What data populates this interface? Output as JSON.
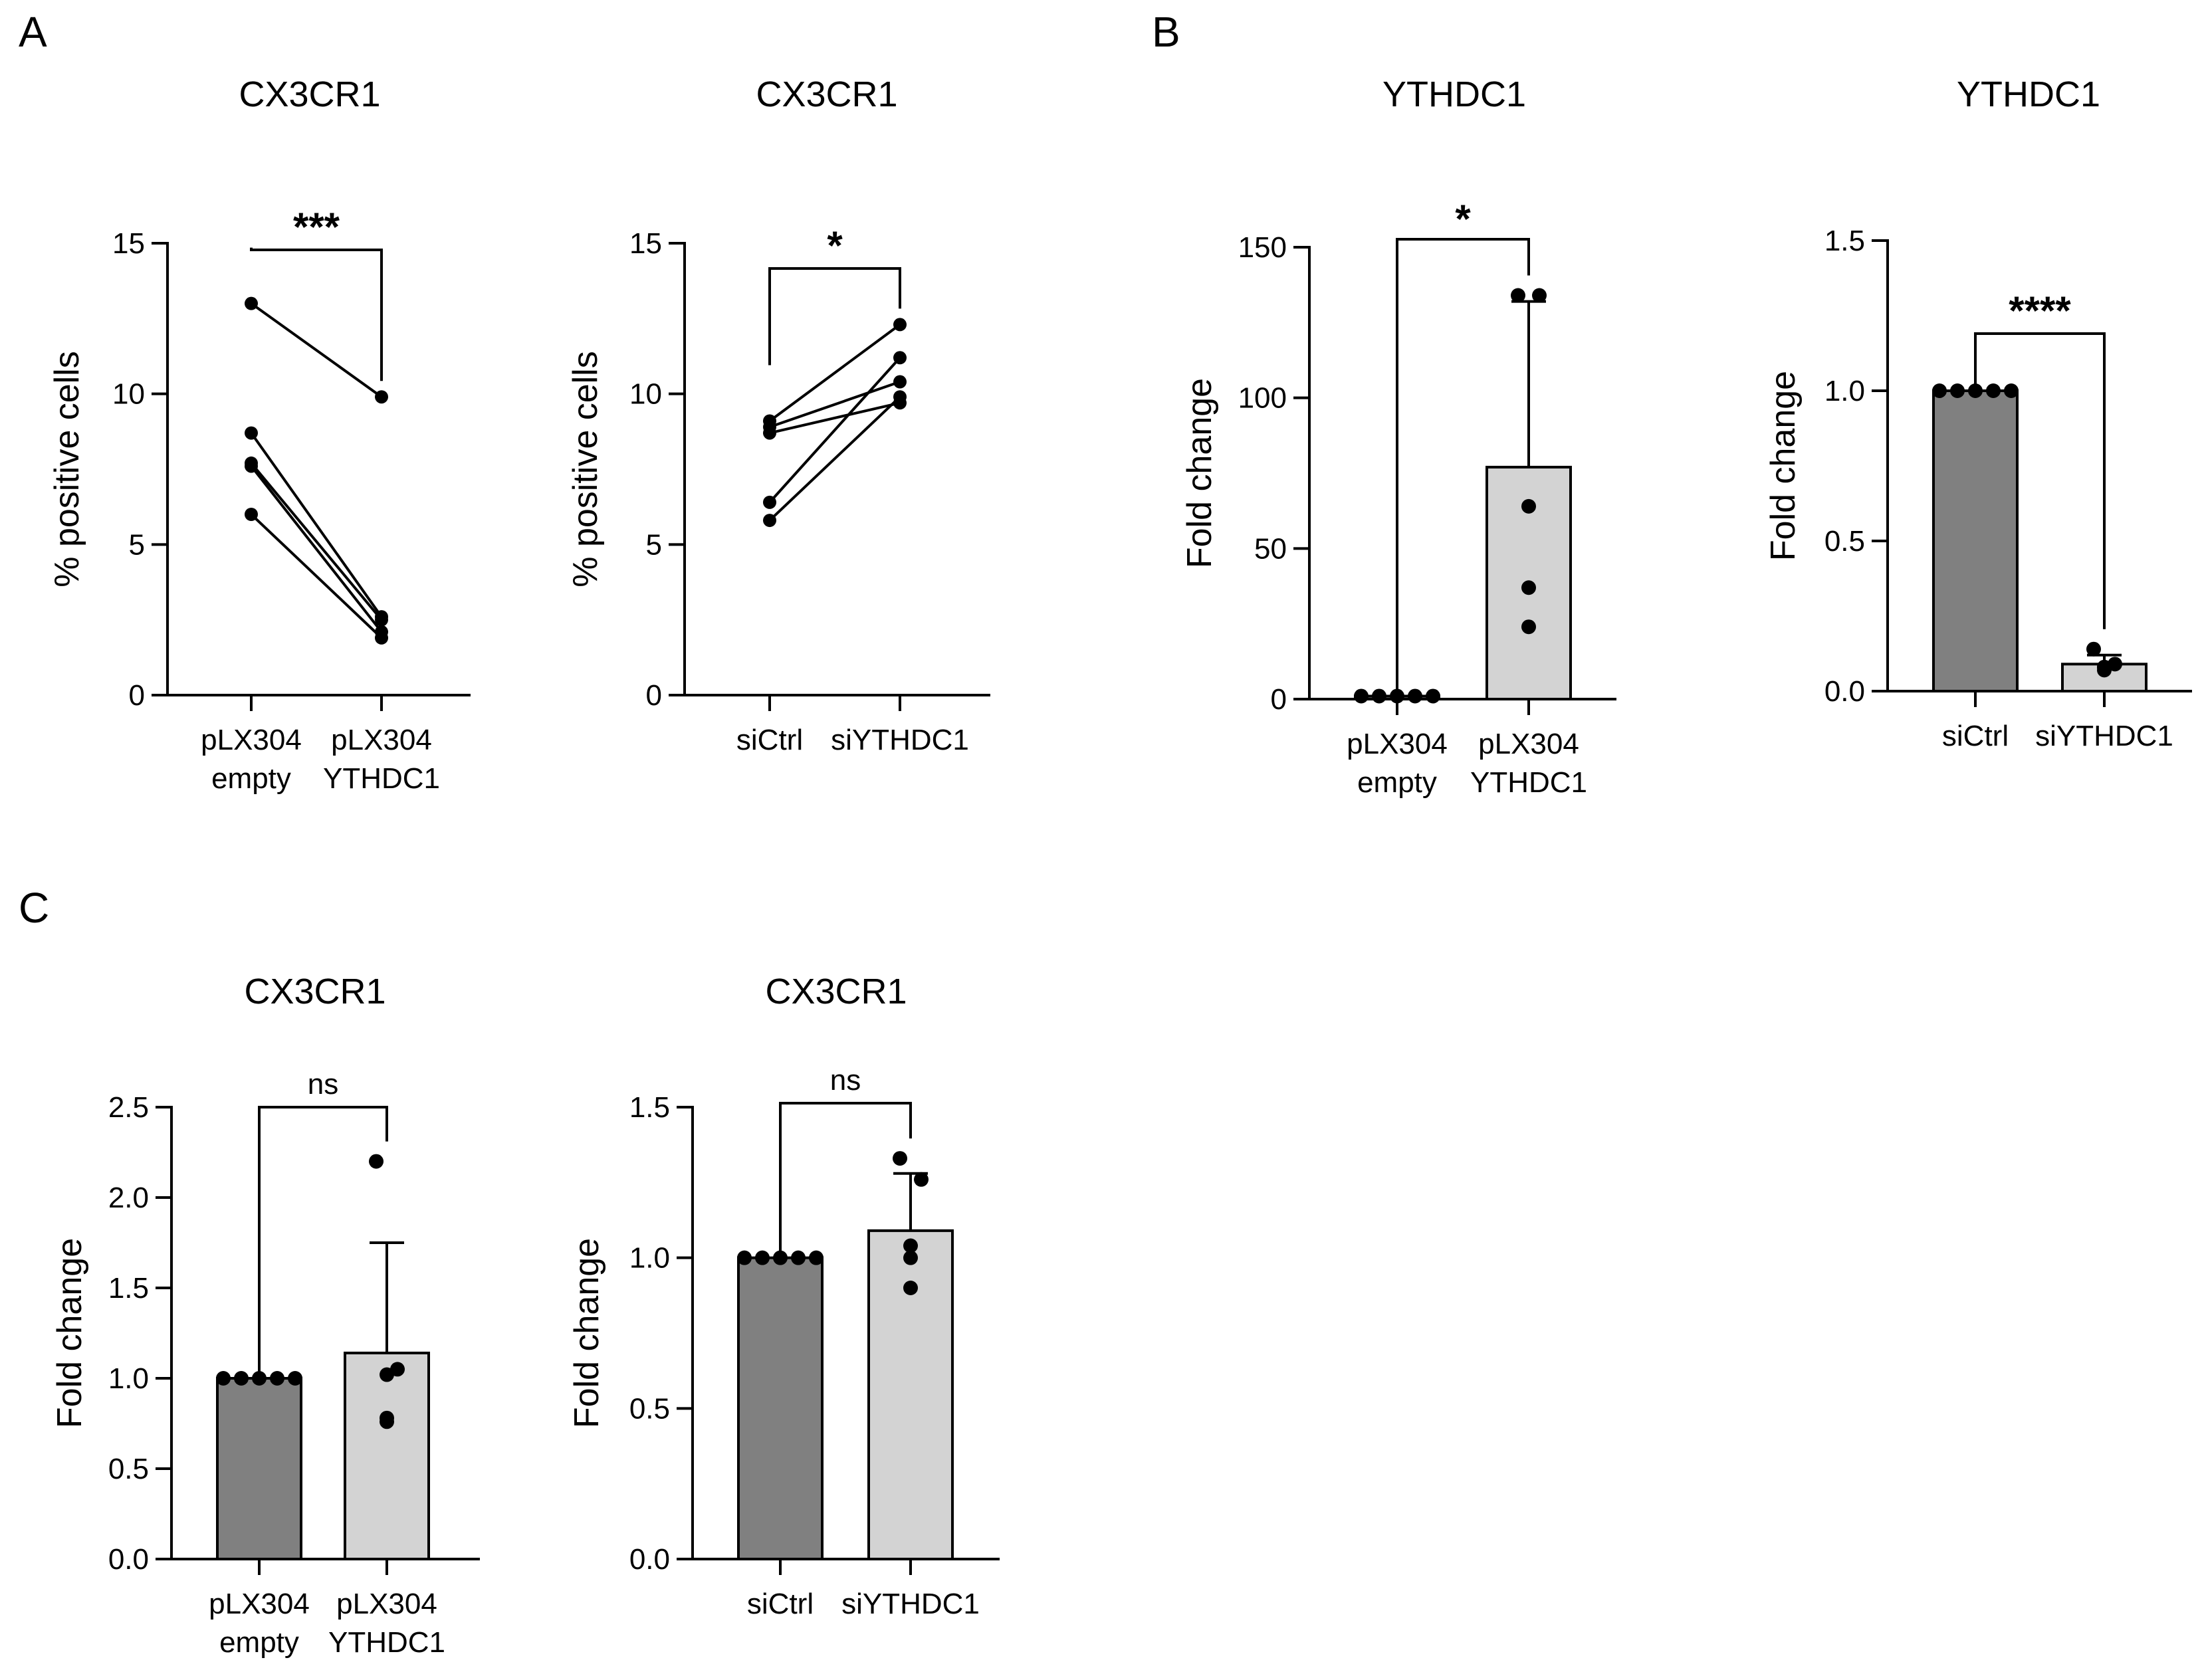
{
  "figure": {
    "panel_letters": [
      "A",
      "B",
      "C"
    ]
  },
  "colors": {
    "bar_dark": "#808080",
    "bar_light": "#d3d3d3",
    "ink": "#000000"
  },
  "chart_data": [
    {
      "id": "A1",
      "panel": "A",
      "type": "line",
      "title": "CX3CR1",
      "ylabel": "% positive cells",
      "ylim": [
        0,
        15
      ],
      "yticks": [
        0,
        5,
        10,
        15
      ],
      "ytick_labels": [
        "0",
        "5",
        "10",
        "15"
      ],
      "categories": [
        "pLX304\nempty",
        "pLX304\nYTHDC1"
      ],
      "pairs": [
        [
          13.0,
          9.9
        ],
        [
          8.7,
          2.6
        ],
        [
          7.7,
          2.5
        ],
        [
          7.6,
          2.1
        ],
        [
          6.0,
          1.9
        ]
      ],
      "significance": {
        "label": "***",
        "style": "bold"
      }
    },
    {
      "id": "A2",
      "panel": "A",
      "type": "line",
      "title": "CX3CR1",
      "ylabel": "% positive cells",
      "ylim": [
        0,
        15
      ],
      "yticks": [
        0,
        5,
        10,
        15
      ],
      "ytick_labels": [
        "0",
        "5",
        "10",
        "15"
      ],
      "categories": [
        "siCtrl",
        "siYTHDC1"
      ],
      "pairs": [
        [
          9.1,
          12.3
        ],
        [
          8.9,
          10.4
        ],
        [
          8.7,
          9.7
        ],
        [
          6.4,
          11.2
        ],
        [
          5.8,
          9.9
        ]
      ],
      "significance": {
        "label": "*",
        "style": "bold"
      }
    },
    {
      "id": "B1",
      "panel": "B",
      "type": "bar",
      "title": "YTHDC1",
      "ylabel": "Fold change",
      "ylim": [
        0,
        150
      ],
      "yticks": [
        0,
        50,
        100,
        150
      ],
      "ytick_labels": [
        "0",
        "50",
        "100",
        "150"
      ],
      "categories": [
        "pLX304\nempty",
        "pLX304\nYTHDC1"
      ],
      "values": [
        1,
        77
      ],
      "errors": [
        0,
        55
      ],
      "points": [
        [
          1,
          1,
          1,
          1,
          1
        ],
        [
          134,
          134,
          64,
          37,
          24
        ]
      ],
      "significance": {
        "label": "*",
        "style": "bold"
      }
    },
    {
      "id": "B2",
      "panel": "B",
      "type": "bar",
      "title": "YTHDC1",
      "ylabel": "Fold change",
      "ylim": [
        0,
        1.5
      ],
      "yticks": [
        0,
        0.5,
        1.0,
        1.5
      ],
      "ytick_labels": [
        "0.0",
        "0.5",
        "1.0",
        "1.5"
      ],
      "categories": [
        "siCtrl",
        "siYTHDC1"
      ],
      "values": [
        1.0,
        0.09
      ],
      "errors": [
        0,
        0.03
      ],
      "points": [
        [
          1,
          1,
          1,
          1,
          1
        ],
        [
          0.14,
          0.09,
          0.08,
          0.07,
          0.08
        ]
      ],
      "significance": {
        "label": "****",
        "style": "bold"
      }
    },
    {
      "id": "C1",
      "panel": "C",
      "type": "bar",
      "title": "CX3CR1",
      "ylabel": "Fold change",
      "ylim": [
        0,
        2.5
      ],
      "yticks": [
        0,
        0.5,
        1.0,
        1.5,
        2.0,
        2.5
      ],
      "ytick_labels": [
        "0.0",
        "0.5",
        "1.0",
        "1.5",
        "2.0",
        "2.5"
      ],
      "categories": [
        "pLX304\nempty",
        "pLX304\nYTHDC1"
      ],
      "values": [
        1.0,
        1.14
      ],
      "errors": [
        0,
        0.61
      ],
      "points": [
        [
          1,
          1,
          1,
          1,
          1
        ],
        [
          2.2,
          1.05,
          1.02,
          0.78,
          0.76
        ]
      ],
      "significance": {
        "label": "ns",
        "style": "normal"
      }
    },
    {
      "id": "C2",
      "panel": "C",
      "type": "bar",
      "title": "CX3CR1",
      "ylabel": "Fold change",
      "ylim": [
        0,
        1.5
      ],
      "yticks": [
        0,
        0.5,
        1.0,
        1.5
      ],
      "ytick_labels": [
        "0.0",
        "0.5",
        "1.0",
        "1.5"
      ],
      "categories": [
        "siCtrl",
        "siYTHDC1"
      ],
      "values": [
        1.0,
        1.09
      ],
      "errors": [
        0,
        0.19
      ],
      "points": [
        [
          1,
          1,
          1,
          1,
          1
        ],
        [
          1.33,
          1.26,
          1.04,
          1.0,
          0.9
        ]
      ],
      "significance": {
        "label": "ns",
        "style": "normal"
      }
    }
  ]
}
